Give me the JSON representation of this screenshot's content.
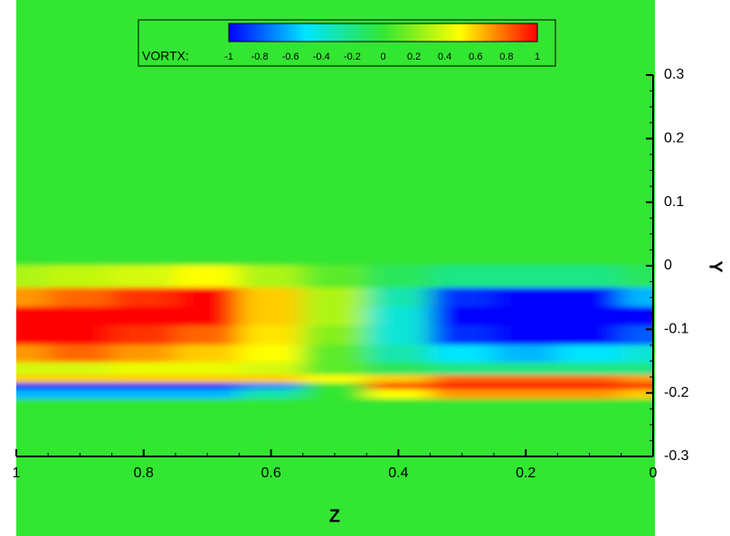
{
  "chart_data": {
    "type": "contour",
    "legend_label": "VORTX:",
    "x_label": "Z",
    "y_label": "Y",
    "x": [
      1,
      0.9,
      0.8,
      0.7,
      0.6,
      0.5,
      0.4,
      0.3,
      0.2,
      0.1,
      0
    ],
    "y": [
      0.3,
      0.2,
      0.1,
      0.02,
      -0.02,
      -0.05,
      -0.08,
      -0.11,
      -0.14,
      -0.165,
      -0.18,
      -0.19,
      -0.2,
      -0.22,
      -0.3
    ],
    "values": [
      [
        0,
        0,
        0,
        0,
        0,
        0,
        0,
        0,
        0,
        0,
        0
      ],
      [
        0,
        0,
        0,
        0,
        0,
        0,
        0,
        0,
        0,
        0,
        0
      ],
      [
        0,
        0,
        0,
        0,
        0,
        0,
        0,
        0,
        0,
        0,
        0
      ],
      [
        0,
        0,
        0,
        0,
        0,
        0,
        0,
        0,
        0,
        0,
        0
      ],
      [
        0.3,
        0.35,
        0.4,
        0.5,
        0.3,
        0.1,
        -0.1,
        -0.2,
        -0.2,
        -0.2,
        -0.1
      ],
      [
        0.7,
        0.8,
        0.9,
        1,
        0.6,
        0.3,
        -0.3,
        -0.9,
        -1,
        -1,
        -0.6
      ],
      [
        1,
        1,
        1,
        1,
        0.6,
        0.3,
        -0.4,
        -1,
        -1,
        -1,
        -1
      ],
      [
        1,
        1,
        0.9,
        0.8,
        0.55,
        0.2,
        -0.4,
        -0.9,
        -1,
        -1,
        -0.8
      ],
      [
        0.7,
        0.8,
        0.7,
        0.6,
        0.5,
        0.1,
        -0.3,
        -0.5,
        -0.6,
        -0.5,
        -0.4
      ],
      [
        0.4,
        0.4,
        0.45,
        0.45,
        0.4,
        0.1,
        -0.1,
        -0.2,
        -0.2,
        -0.2,
        -0.2
      ],
      [
        0.6,
        0.6,
        0.6,
        0.6,
        0.6,
        0.5,
        0.6,
        0.8,
        0.8,
        0.8,
        0.7
      ],
      [
        -1,
        -1,
        -1,
        -1,
        -0.7,
        0,
        0.9,
        1,
        1,
        1,
        1
      ],
      [
        -0.6,
        -0.6,
        -0.6,
        -0.6,
        -0.3,
        0,
        0.5,
        0.7,
        0.7,
        0.7,
        0.6
      ],
      [
        0,
        0,
        0,
        0,
        0,
        0,
        0,
        0,
        0,
        0,
        0
      ],
      [
        0,
        0,
        0,
        0,
        0,
        0,
        0,
        0,
        0,
        0,
        0
      ]
    ],
    "xlim": [
      1,
      0
    ],
    "xticks": [
      1,
      0.8,
      0.6,
      0.4,
      0.2,
      0
    ],
    "ylim": [
      -0.3,
      0.3
    ],
    "yticks": [
      -0.3,
      -0.2,
      -0.1,
      0,
      0.1,
      0.2,
      0.3
    ],
    "clim": [
      -1,
      1
    ],
    "cticks": [
      -1,
      -0.8,
      -0.6,
      -0.4,
      -0.2,
      0,
      0.2,
      0.4,
      0.6,
      0.8,
      1
    ],
    "colormap": [
      "#0000ff",
      "#00e5ff",
      "#33e633",
      "#ffff00",
      "#ff0000"
    ]
  }
}
